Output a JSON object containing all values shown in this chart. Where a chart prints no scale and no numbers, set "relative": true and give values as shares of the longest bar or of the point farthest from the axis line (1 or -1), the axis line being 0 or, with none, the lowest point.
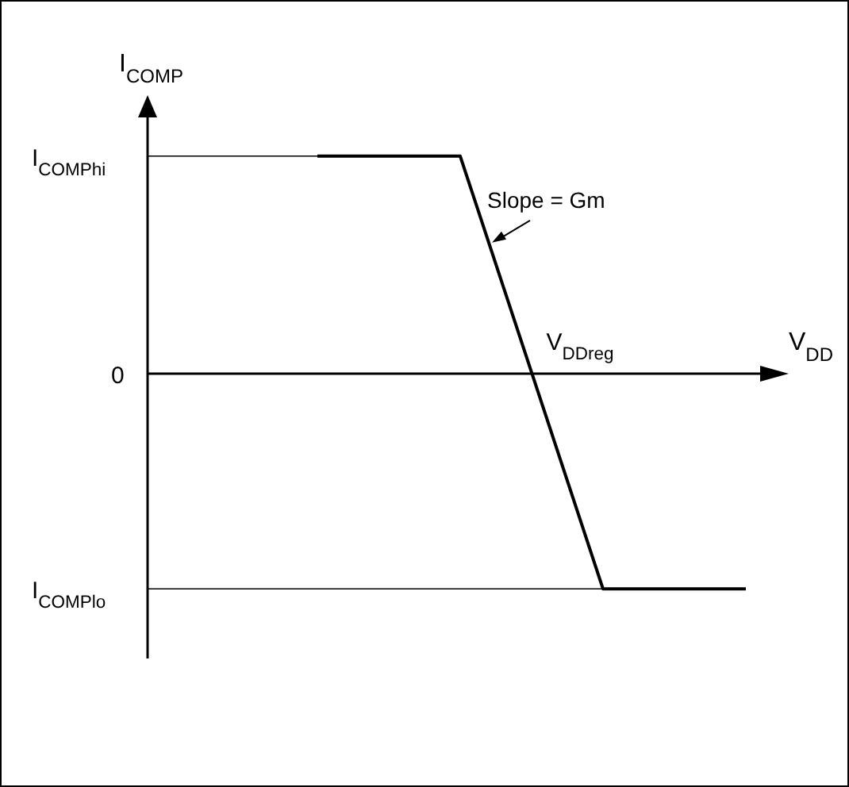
{
  "chart_data": {
    "type": "line",
    "relative": true,
    "xlabel": "V$_{DD}$",
    "ylabel": "I$_{COMP}$",
    "categories": [
      null,
      null,
      null,
      null,
      null
    ],
    "series": [
      {
        "color": "#000000",
        "values": [
          null,
          1,
          1,
          -0.99,
          -0.99
        ]
      }
    ],
    "ref_lines": [
      {
        "axis": "y",
        "value": 1,
        "label": "I$_{COMPhi}$"
      },
      {
        "axis": "y",
        "value": 0,
        "label": "0"
      },
      {
        "axis": "y",
        "value": -0.99,
        "label": "I$_{COMPlo}$"
      }
    ],
    "annotations": [
      "Slope = Gm",
      "V$_{DDreg}$"
    ],
    "grid": false,
    "legend": false,
    "marker": "none",
    "line_style": "solid"
  }
}
